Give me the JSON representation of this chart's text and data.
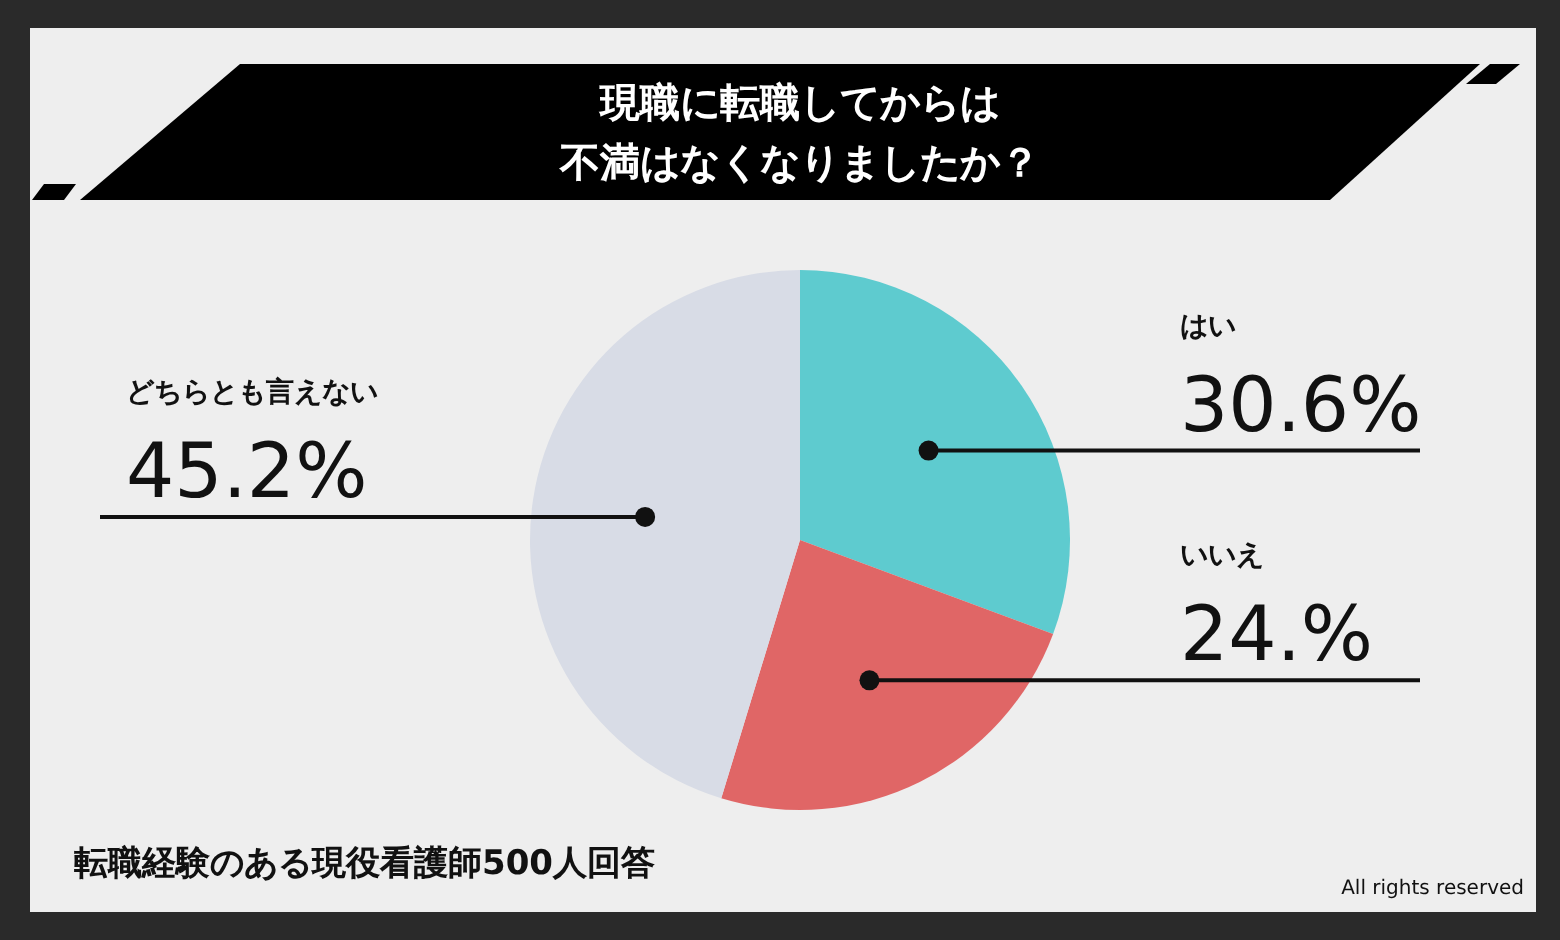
{
  "chart_data": {
    "type": "pie",
    "title": "現職に転職してからは",
    "subtitle": "不満はなくなりましたか？",
    "categories": [
      "はい",
      "いいえ",
      "どちらとも言えない"
    ],
    "values": [
      30.6,
      24,
      45.2
    ],
    "colors": [
      "#5ecbcf",
      "#e06666",
      "#d8dce6"
    ],
    "value_labels": [
      "30.6%",
      "24.%",
      "45.2%"
    ],
    "annotations": [
      "転職経験のある現役看護師500人回答",
      "All rights reserved"
    ],
    "legend": false
  }
}
